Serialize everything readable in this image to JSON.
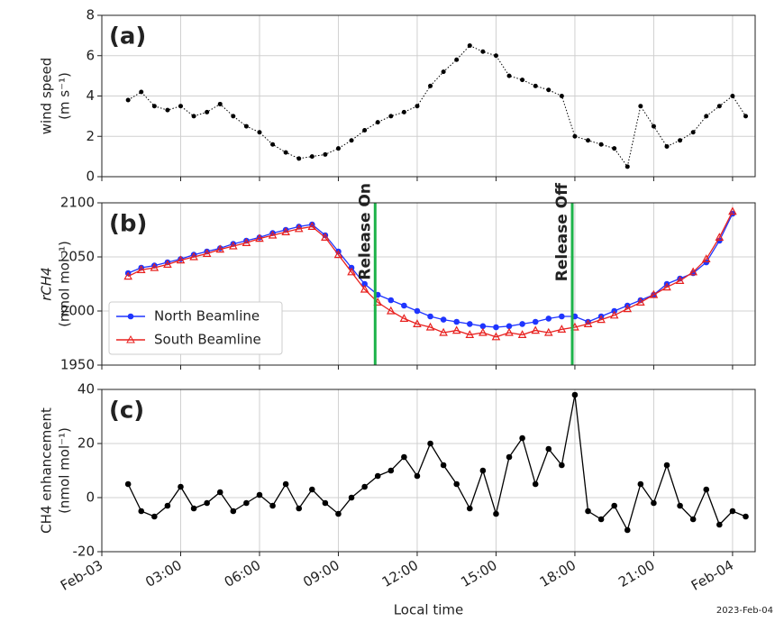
{
  "x_axis": {
    "xlim": [
      0,
      24.86
    ],
    "label": "Local time",
    "xticks": [
      {
        "value": 0,
        "label": "Feb-03"
      },
      {
        "value": 3,
        "label": "03:00"
      },
      {
        "value": 6,
        "label": "06:00"
      },
      {
        "value": 9,
        "label": "09:00"
      },
      {
        "value": 12,
        "label": "12:00"
      },
      {
        "value": 15,
        "label": "15:00"
      },
      {
        "value": 18,
        "label": "18:00"
      },
      {
        "value": 21,
        "label": "21:00"
      },
      {
        "value": 24,
        "label": "Feb-04"
      }
    ],
    "x": [
      1.0,
      1.5,
      2.0,
      2.5,
      3.0,
      3.5,
      4.0,
      4.5,
      5.0,
      5.5,
      6.0,
      6.5,
      7.0,
      7.5,
      8.0,
      8.5,
      9.0,
      9.5,
      10.0,
      10.5,
      11.0,
      11.5,
      12.0,
      12.5,
      13.0,
      13.5,
      14.0,
      14.5,
      15.0,
      15.5,
      16.0,
      16.5,
      17.0,
      17.5,
      18.0,
      18.5,
      19.0,
      19.5,
      20.0,
      20.5,
      21.0,
      21.5,
      22.0,
      22.5,
      23.0,
      23.5,
      24.0,
      24.5
    ],
    "grid": true
  },
  "footer": "2023-Feb-04",
  "chart_data": [
    {
      "type": "line",
      "panel_label": "(a)",
      "ylabel": [
        "wind speed",
        "(m s⁻¹)"
      ],
      "ylim": [
        0,
        8
      ],
      "yticks": [
        0,
        2,
        4,
        6,
        8
      ],
      "series": [
        {
          "color": "#000000",
          "marker": "dot",
          "linestyle": "dotted",
          "values": [
            3.8,
            4.2,
            3.5,
            3.3,
            3.5,
            3.0,
            3.2,
            3.6,
            3.0,
            2.5,
            2.2,
            1.6,
            1.2,
            0.9,
            1.0,
            1.1,
            1.4,
            1.8,
            2.3,
            2.7,
            3.0,
            3.2,
            3.5,
            4.5,
            5.2,
            5.8,
            6.5,
            6.2,
            6.0,
            5.0,
            4.8,
            4.5,
            4.3,
            4.0,
            2.0,
            1.8,
            1.6,
            1.4,
            0.5,
            3.5,
            2.5,
            1.5,
            1.8,
            2.2,
            3.0,
            3.5,
            4.0,
            3.0
          ]
        }
      ]
    },
    {
      "type": "line",
      "panel_label": "(b)",
      "ylabel": [
        "rCH4",
        "(nmol mol⁻¹)"
      ],
      "ylim": [
        1950,
        2100
      ],
      "yticks": [
        1950,
        2000,
        2050,
        2100
      ],
      "annotations": [
        {
          "text": "Release On",
          "x": 10.4
        },
        {
          "text": "Release Off",
          "x": 17.9
        }
      ],
      "annotation_color": "#1db34a",
      "legend": "lower left",
      "series": [
        {
          "name": "North Beamline",
          "color": "#1f35ff",
          "marker": "circle",
          "linestyle": "solid",
          "values": [
            2035,
            2040,
            2042,
            2045,
            2048,
            2052,
            2055,
            2058,
            2062,
            2065,
            2068,
            2072,
            2075,
            2078,
            2080,
            2070,
            2055,
            2040,
            2025,
            2015,
            2010,
            2005,
            2000,
            1995,
            1992,
            1990,
            1988,
            1986,
            1985,
            1986,
            1988,
            1990,
            1993,
            1995,
            1995,
            1990,
            1995,
            2000,
            2005,
            2010,
            2015,
            2025,
            2030,
            2035,
            2045,
            2065,
            2090,
            null
          ]
        },
        {
          "name": "South Beamline",
          "color": "#e8201e",
          "marker": "triangle",
          "linestyle": "solid",
          "values": [
            2032,
            2038,
            2040,
            2043,
            2047,
            2050,
            2053,
            2057,
            2060,
            2063,
            2067,
            2070,
            2073,
            2076,
            2078,
            2068,
            2052,
            2036,
            2020,
            2008,
            2000,
            1993,
            1988,
            1985,
            1980,
            1982,
            1978,
            1980,
            1976,
            1980,
            1978,
            1982,
            1980,
            1983,
            1985,
            1988,
            1992,
            1996,
            2002,
            2008,
            2015,
            2022,
            2028,
            2036,
            2048,
            2068,
            2092,
            null
          ]
        }
      ]
    },
    {
      "type": "line",
      "panel_label": "(c)",
      "ylabel": [
        "CH4 enhancement",
        "(nmol mol⁻¹)"
      ],
      "ylim": [
        -20,
        40
      ],
      "yticks": [
        -20,
        0,
        20,
        40
      ],
      "series": [
        {
          "color": "#000000",
          "marker": "circle",
          "linestyle": "solid",
          "values": [
            5,
            -5,
            -7,
            -3,
            4,
            -4,
            -2,
            2,
            -5,
            -2,
            1,
            -3,
            5,
            -4,
            3,
            -2,
            -6,
            0,
            4,
            8,
            10,
            15,
            8,
            20,
            12,
            5,
            -4,
            10,
            -6,
            15,
            22,
            5,
            18,
            12,
            38,
            -5,
            -8,
            -3,
            -12,
            5,
            -2,
            12,
            -3,
            -8,
            3,
            -10,
            -5,
            -7
          ]
        }
      ]
    }
  ]
}
